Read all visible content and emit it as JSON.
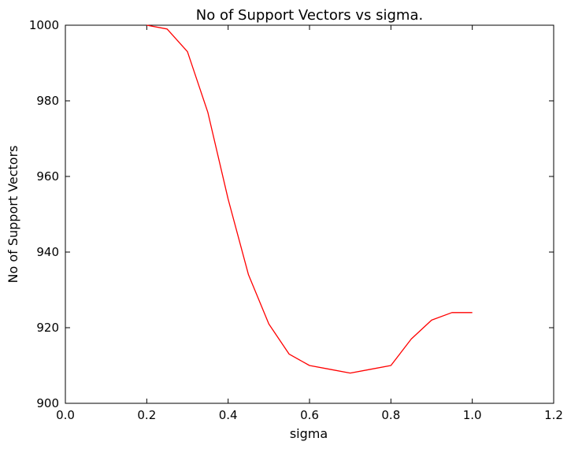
{
  "chart_data": {
    "type": "line",
    "title": "No of Support Vectors vs sigma.",
    "xlabel": "sigma",
    "ylabel": "No of Support Vectors",
    "xlim": [
      0.0,
      1.2
    ],
    "ylim": [
      900,
      1000
    ],
    "xticks": [
      "0.0",
      "0.2",
      "0.4",
      "0.6",
      "0.8",
      "1.0",
      "1.2"
    ],
    "yticks": [
      "900",
      "920",
      "940",
      "960",
      "980",
      "1000"
    ],
    "grid": false,
    "series": [
      {
        "color": "#ff0000",
        "x": [
          0.2,
          0.25,
          0.3,
          0.35,
          0.4,
          0.45,
          0.5,
          0.55,
          0.6,
          0.65,
          0.7,
          0.75,
          0.8,
          0.85,
          0.9,
          0.95,
          1.0
        ],
        "y": [
          1000,
          999,
          993,
          977,
          954,
          934,
          921,
          913,
          910,
          909,
          908,
          909,
          910,
          917,
          922,
          924,
          924
        ]
      }
    ]
  }
}
